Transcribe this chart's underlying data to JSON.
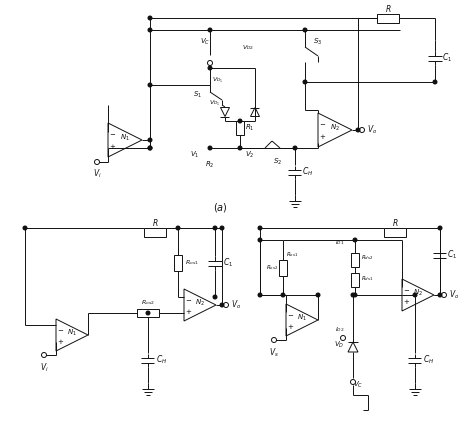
{
  "bg_color": "#ffffff",
  "line_color": "#111111",
  "fig_width": 4.74,
  "fig_height": 4.21,
  "dpi": 100
}
